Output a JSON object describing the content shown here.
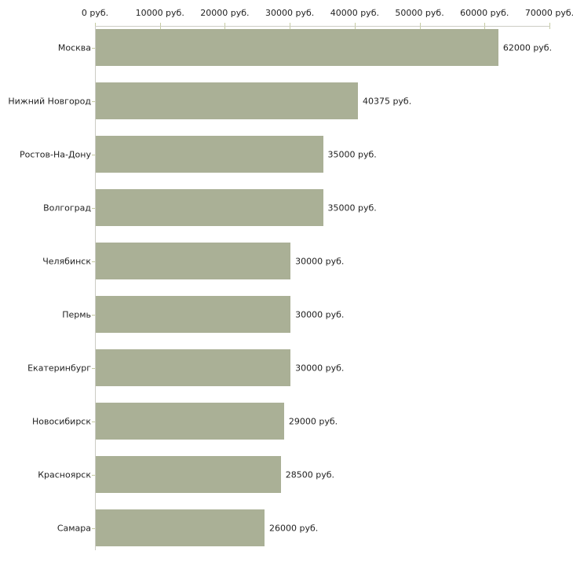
{
  "chart_data": {
    "type": "bar",
    "orientation": "horizontal",
    "title": "",
    "xlabel": "",
    "ylabel": "",
    "unit": "руб.",
    "categories": [
      "Москва",
      "Нижний Новгород",
      "Ростов-На-Дону",
      "Волгоград",
      "Челябинск",
      "Пермь",
      "Екатеринбург",
      "Новосибирск",
      "Красноярск",
      "Самара"
    ],
    "values": [
      62000,
      40375,
      35000,
      35000,
      30000,
      30000,
      30000,
      29000,
      28500,
      26000
    ],
    "value_labels": [
      "62000 руб.",
      "40375 руб.",
      "35000 руб.",
      "35000 руб.",
      "30000 руб.",
      "30000 руб.",
      "30000 руб.",
      "29000 руб.",
      "28500 руб.",
      "26000 руб."
    ],
    "x_ticks": [
      "0 руб.",
      "10000 руб.",
      "20000 руб.",
      "30000 руб.",
      "40000 руб.",
      "50000 руб.",
      "60000 руб.",
      "70000 руб."
    ],
    "x_tick_values": [
      0,
      10000,
      20000,
      30000,
      40000,
      50000,
      60000,
      70000
    ],
    "xlim": [
      0,
      70000
    ],
    "grid": false,
    "legend": false,
    "colors": {
      "bar": "#aab096",
      "axis_line": "#ccccc4",
      "tick": "#c5cba1",
      "text": "#222222",
      "background": "#ffffff"
    }
  }
}
